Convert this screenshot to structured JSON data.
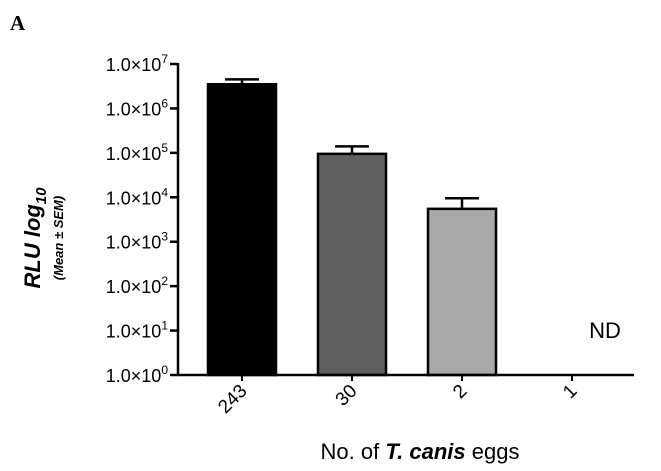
{
  "panel_label": "A",
  "chart_data": {
    "type": "bar",
    "categories": [
      "243",
      "30",
      "2",
      "1"
    ],
    "values": [
      3500000,
      95000,
      5500,
      null
    ],
    "errors_upper": [
      4500000,
      140000,
      9500,
      null
    ],
    "bar_colors": [
      "#000000",
      "#5f5f5f",
      "#a9a9a9",
      "#ffffff"
    ],
    "annotations": [
      {
        "category": "1",
        "text": "ND"
      }
    ],
    "y_scale": "log",
    "ylim": [
      1,
      10000000
    ],
    "y_ticks": [
      {
        "value": 1,
        "mantissa": "1.0×10",
        "exp": "0"
      },
      {
        "value": 10,
        "mantissa": "1.0×10",
        "exp": "1"
      },
      {
        "value": 100,
        "mantissa": "1.0×10",
        "exp": "2"
      },
      {
        "value": 1000,
        "mantissa": "1.0×10",
        "exp": "3"
      },
      {
        "value": 10000,
        "mantissa": "1.0×10",
        "exp": "4"
      },
      {
        "value": 100000,
        "mantissa": "1.0×10",
        "exp": "5"
      },
      {
        "value": 1000000,
        "mantissa": "1.0×10",
        "exp": "6"
      },
      {
        "value": 10000000,
        "mantissa": "1.0×10",
        "exp": "7"
      }
    ],
    "ylabel": {
      "main": "RLU log",
      "sub": "10",
      "line2": "(Mean ± SEM)"
    },
    "xlabel": {
      "prefix": "No. of ",
      "italic": "T. canis",
      "suffix": " eggs"
    },
    "grid": false,
    "legend": "none"
  }
}
